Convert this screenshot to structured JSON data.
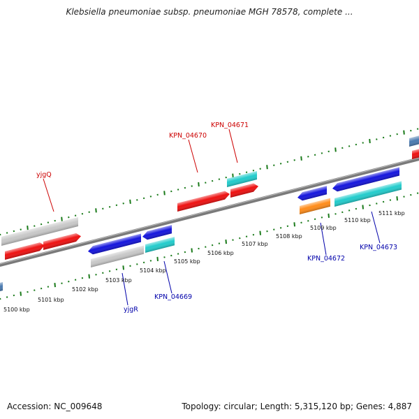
{
  "title": "Klebsiella pneumoniae subsp. pneumoniae MGH 78578, complete ...",
  "accession": "Accession: NC_009648",
  "stats": "Topology: circular; Length: 5,315,120 bp; Genes: 4,887",
  "colors": {
    "red": "#ee1111",
    "blue": "#1515dd",
    "cyan": "#22cccc",
    "gray": "#c8c8c8",
    "orange": "#ff8c1a",
    "steel": "#4a7ab0",
    "tick": "#1a7a1a",
    "backbone": "#7a7a7a",
    "forward_label": "#cc0000",
    "reverse_label": "#0000aa"
  },
  "ticks": [
    {
      "text": "5100 kbp"
    },
    {
      "text": "5101 kbp"
    },
    {
      "text": "5102 kbp"
    },
    {
      "text": "5103 kbp"
    },
    {
      "text": "5104 kbp"
    },
    {
      "text": "5105 kbp"
    },
    {
      "text": "5106 kbp"
    },
    {
      "text": "5107 kbp"
    },
    {
      "text": "5108 kbp"
    },
    {
      "text": "5109 kbp"
    },
    {
      "text": "5110 kbp"
    },
    {
      "text": "5111 kbp"
    }
  ],
  "gene_labels": {
    "yjgQ": "yjgQ",
    "KPN_04670": "KPN_04670",
    "KPN_04671": "KPN_04671",
    "yjgR": "yjgR",
    "KPN_04669": "KPN_04669",
    "KPN_04672": "KPN_04672",
    "KPN_04673": "KPN_04673"
  }
}
